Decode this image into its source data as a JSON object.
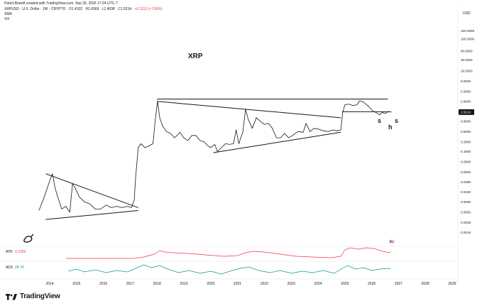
{
  "header": {
    "credit": "PeterLBrandt created with TradingView.com, Sep 26, 2026 17:24 UTC-7",
    "symbol": "XRPUSD · U.S. Dollar · 1W · CRYPTO",
    "open": "O1.4102",
    "high": "H1.6569",
    "low": "L1.4038",
    "close": "C1.5214",
    "change": "+0.1112 (+7.89%)",
    "sma_label": "SMA",
    "vol_label": "Vol"
  },
  "chart_data": {
    "type": "line",
    "title": "XRP",
    "currency": "USD",
    "y_scale": "log",
    "y_ticks": [
      "160.0000",
      "100.0000",
      "50.0000",
      "30.0000",
      "16.0000",
      "9.0000",
      "5.0000",
      "2.8000",
      "1.5214",
      "0.9000",
      "0.5000",
      "0.2800",
      "0.1600",
      "0.0900",
      "0.0500",
      "0.0280",
      "0.0160",
      "0.0090",
      "0.0050",
      "0.0028",
      "0.0016"
    ],
    "last_price": "1.5214",
    "x_ticks": [
      "2014",
      "2015",
      "2016",
      "2017",
      "2018",
      "2019",
      "2020",
      "2021",
      "2022",
      "2023",
      "2024",
      "2025",
      "2026",
      "2027",
      "2028",
      "2029"
    ],
    "price_series": [
      [
        2013.6,
        0.0055
      ],
      [
        2013.8,
        0.012
      ],
      [
        2014.0,
        0.03
      ],
      [
        2014.1,
        0.045
      ],
      [
        2014.2,
        0.02
      ],
      [
        2014.3,
        0.012
      ],
      [
        2014.45,
        0.006
      ],
      [
        2014.6,
        0.007
      ],
      [
        2014.75,
        0.005
      ],
      [
        2014.85,
        0.025
      ],
      [
        2014.95,
        0.02
      ],
      [
        2015.1,
        0.012
      ],
      [
        2015.3,
        0.009
      ],
      [
        2015.5,
        0.008
      ],
      [
        2015.7,
        0.006
      ],
      [
        2015.9,
        0.006
      ],
      [
        2016.1,
        0.0075
      ],
      [
        2016.3,
        0.0065
      ],
      [
        2016.5,
        0.007
      ],
      [
        2016.7,
        0.0065
      ],
      [
        2016.9,
        0.007
      ],
      [
        2017.05,
        0.0065
      ],
      [
        2017.15,
        0.01
      ],
      [
        2017.2,
        0.035
      ],
      [
        2017.3,
        0.2
      ],
      [
        2017.4,
        0.25
      ],
      [
        2017.55,
        0.2
      ],
      [
        2017.7,
        0.22
      ],
      [
        2017.85,
        0.25
      ],
      [
        2017.95,
        1.2
      ],
      [
        2018.02,
        2.8
      ],
      [
        2018.1,
        1.1
      ],
      [
        2018.2,
        0.7
      ],
      [
        2018.35,
        0.5
      ],
      [
        2018.5,
        0.45
      ],
      [
        2018.65,
        0.35
      ],
      [
        2018.75,
        0.4
      ],
      [
        2018.85,
        0.48
      ],
      [
        2019.0,
        0.35
      ],
      [
        2019.15,
        0.3
      ],
      [
        2019.3,
        0.4
      ],
      [
        2019.45,
        0.4
      ],
      [
        2019.6,
        0.3
      ],
      [
        2019.75,
        0.28
      ],
      [
        2019.9,
        0.22
      ],
      [
        2020.0,
        0.2
      ],
      [
        2020.15,
        0.24
      ],
      [
        2020.25,
        0.16
      ],
      [
        2020.4,
        0.2
      ],
      [
        2020.55,
        0.25
      ],
      [
        2020.7,
        0.24
      ],
      [
        2020.85,
        0.25
      ],
      [
        2020.95,
        0.55
      ],
      [
        2021.05,
        0.25
      ],
      [
        2021.2,
        0.5
      ],
      [
        2021.3,
        1.8
      ],
      [
        2021.4,
        1.0
      ],
      [
        2021.55,
        0.6
      ],
      [
        2021.7,
        1.1
      ],
      [
        2021.85,
        0.9
      ],
      [
        2022.0,
        0.75
      ],
      [
        2022.15,
        0.8
      ],
      [
        2022.3,
        0.6
      ],
      [
        2022.45,
        0.35
      ],
      [
        2022.6,
        0.35
      ],
      [
        2022.75,
        0.45
      ],
      [
        2022.9,
        0.35
      ],
      [
        2023.05,
        0.4
      ],
      [
        2023.25,
        0.5
      ],
      [
        2023.45,
        0.48
      ],
      [
        2023.55,
        0.8
      ],
      [
        2023.7,
        0.5
      ],
      [
        2023.85,
        0.6
      ],
      [
        2024.0,
        0.58
      ],
      [
        2024.2,
        0.52
      ],
      [
        2024.4,
        0.5
      ],
      [
        2024.55,
        0.55
      ],
      [
        2024.7,
        0.52
      ],
      [
        2024.85,
        0.55
      ],
      [
        2024.92,
        1.5
      ],
      [
        2025.0,
        2.3
      ],
      [
        2025.15,
        2.4
      ],
      [
        2025.3,
        2.2
      ],
      [
        2025.45,
        2.3
      ],
      [
        2025.55,
        2.9
      ],
      [
        2025.65,
        2.8
      ],
      [
        2025.75,
        2.5
      ],
      [
        2025.85,
        2.2
      ],
      [
        2025.95,
        1.9
      ],
      [
        2026.05,
        1.6
      ],
      [
        2026.15,
        1.5
      ],
      [
        2026.3,
        1.3
      ],
      [
        2026.4,
        1.5
      ],
      [
        2026.5,
        1.4
      ],
      [
        2026.6,
        1.55
      ],
      [
        2026.74,
        1.5214
      ]
    ],
    "trendlines": [
      {
        "name": "2014-2017 upper",
        "from": [
          2013.85,
          0.045
        ],
        "to": [
          2017.3,
          0.0065
        ]
      },
      {
        "name": "2014-2017 lower",
        "from": [
          2013.85,
          0.0033
        ],
        "to": [
          2017.3,
          0.0055
        ]
      },
      {
        "name": "2018-2024 upper",
        "from": [
          2018.0,
          2.8
        ],
        "to": [
          2024.85,
          1.1
        ]
      },
      {
        "name": "2018-2024 lower",
        "from": [
          2020.1,
          0.15
        ],
        "to": [
          2024.85,
          0.48
        ]
      },
      {
        "name": "top",
        "from": [
          2018.0,
          3.2
        ],
        "to": [
          2026.6,
          3.2
        ]
      },
      {
        "name": "neckline",
        "from": [
          2024.9,
          1.55
        ],
        "to": [
          2026.7,
          1.55
        ]
      }
    ],
    "annotations": [
      "s",
      "h",
      "s"
    ],
    "atr": {
      "label": "ATR",
      "value": "0.2369"
    },
    "adx": {
      "label": "ADX",
      "value": "28.74"
    }
  },
  "footer": {
    "brand": "TradingView"
  }
}
